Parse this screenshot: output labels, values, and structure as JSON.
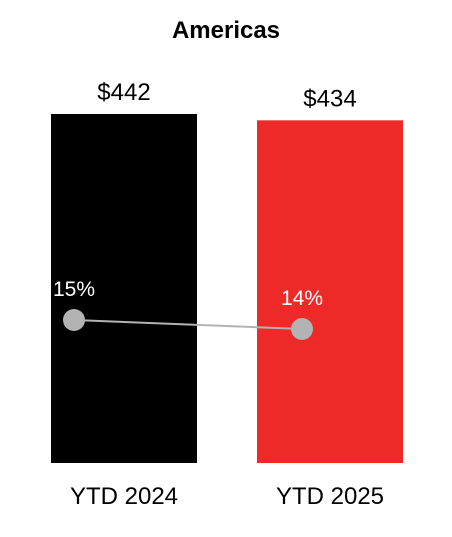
{
  "chart_data": {
    "type": "bar",
    "title": "Americas",
    "categories": [
      "YTD 2024",
      "YTD 2025"
    ],
    "series": [
      {
        "values": [
          442,
          434
        ],
        "value_labels": [
          "$442",
          "$434"
        ],
        "colors": [
          "#000000",
          "#ee2a29"
        ]
      },
      {
        "type": "line",
        "values": [
          15,
          14
        ],
        "value_labels": [
          "15%",
          "14%"
        ],
        "color": "#b3b3b3"
      }
    ],
    "xlabel": "",
    "ylabel": "",
    "grid": false
  }
}
